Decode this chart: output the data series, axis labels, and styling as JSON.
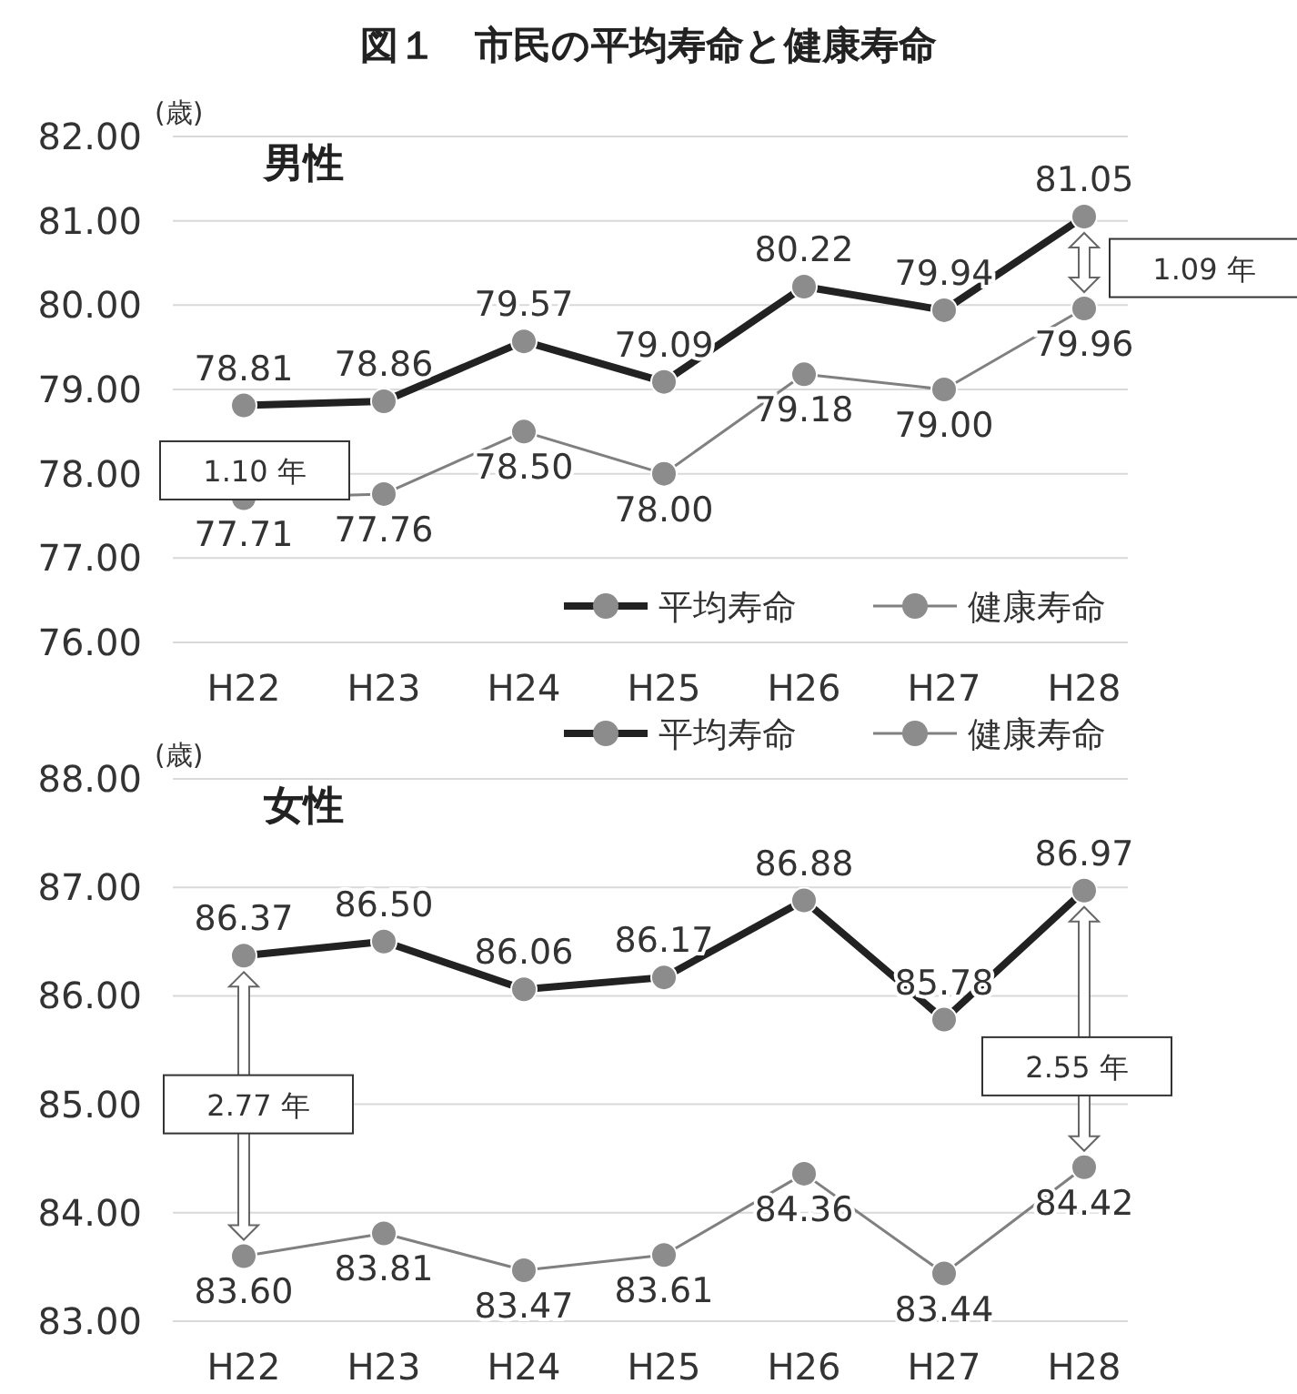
{
  "chart_data": [
    {
      "type": "line",
      "title": "図１　市民の平均寿命と健康寿命",
      "subtitle": "男性",
      "ylabel": "(歳)",
      "categories": [
        "H22",
        "H23",
        "H24",
        "H25",
        "H26",
        "H27",
        "H28"
      ],
      "series": [
        {
          "name": "平均寿命",
          "color": "#222222",
          "values": [
            78.81,
            78.86,
            79.57,
            79.09,
            80.22,
            79.94,
            81.05
          ],
          "value_labels": [
            "78.81",
            "78.86",
            "79.57",
            "79.09",
            "80.22",
            "79.94",
            "81.05"
          ]
        },
        {
          "name": "健康寿命",
          "color": "#808080",
          "values": [
            77.71,
            77.76,
            78.5,
            78.0,
            79.18,
            79.0,
            79.96
          ],
          "value_labels": [
            "77.71",
            "77.76",
            "78.50",
            "78.00",
            "79.18",
            "79.00",
            "79.96"
          ]
        }
      ],
      "ylim": [
        76,
        82
      ],
      "yticks": [
        {
          "value": 76,
          "label": "76.00"
        },
        {
          "value": 77,
          "label": "77.00"
        },
        {
          "value": 78,
          "label": "78.00"
        },
        {
          "value": 79,
          "label": "79.00"
        },
        {
          "value": 80,
          "label": "80.00"
        },
        {
          "value": 81,
          "label": "81.00"
        },
        {
          "value": 82,
          "label": "82.00"
        }
      ],
      "grid": "y",
      "legend": "bottom right",
      "marker": "circle",
      "annotations": [
        "1.10 年",
        "1.09 年"
      ]
    },
    {
      "type": "line",
      "subtitle": "女性",
      "ylabel": "(歳)",
      "categories": [
        "H22",
        "H23",
        "H24",
        "H25",
        "H26",
        "H27",
        "H28"
      ],
      "series": [
        {
          "name": "平均寿命",
          "color": "#222222",
          "values": [
            86.37,
            86.5,
            86.06,
            86.17,
            86.88,
            85.78,
            86.97
          ],
          "value_labels": [
            "86.37",
            "86.50",
            "86.06",
            "86.17",
            "86.88",
            "85.78",
            "86.97"
          ]
        },
        {
          "name": "健康寿命",
          "color": "#808080",
          "values": [
            83.6,
            83.81,
            83.47,
            83.61,
            84.36,
            83.44,
            84.42
          ],
          "value_labels": [
            "83.60",
            "83.81",
            "83.47",
            "83.61",
            "84.36",
            "83.44",
            "84.42"
          ]
        }
      ],
      "ylim": [
        83,
        88
      ],
      "yticks": [
        {
          "value": 83,
          "label": "83.00"
        },
        {
          "value": 84,
          "label": "84.00"
        },
        {
          "value": 85,
          "label": "85.00"
        },
        {
          "value": 86,
          "label": "86.00"
        },
        {
          "value": 87,
          "label": "87.00"
        },
        {
          "value": 88,
          "label": "88.00"
        }
      ],
      "grid": "y",
      "legend": "top right",
      "marker": "circle",
      "annotations": [
        "2.77 年",
        "2.55 年"
      ]
    }
  ]
}
